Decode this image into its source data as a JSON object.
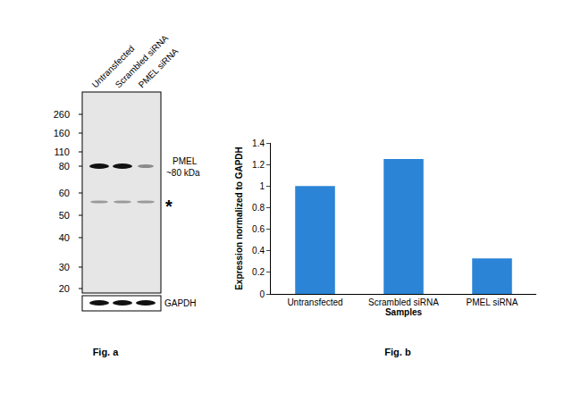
{
  "figure_a": {
    "lanes": [
      "Untransfected",
      "Scrambled siRNA",
      "PMEL siRNA"
    ],
    "markers": [
      260,
      160,
      110,
      80,
      60,
      50,
      40,
      30,
      20
    ],
    "band_label": [
      "PMEL",
      "~80 kDa"
    ],
    "asterisk": "*",
    "loading_control": "GAPDH"
  },
  "chart_data": {
    "type": "bar",
    "categories": [
      "Untransfected",
      "Scrambled siRNA",
      "PMEL siRNA"
    ],
    "values": [
      1,
      1.25,
      0.33
    ],
    "color": "#2b84d6",
    "ylim": [
      0,
      1.4
    ],
    "yticks": [
      0,
      0.2,
      0.4,
      0.6,
      0.8,
      1,
      1.2,
      1.4
    ],
    "xlabel": "Samples",
    "ylabel": "Expression normalized to GAPDH",
    "grid": false
  },
  "captions": [
    "Fig. a",
    "Fig. b"
  ]
}
